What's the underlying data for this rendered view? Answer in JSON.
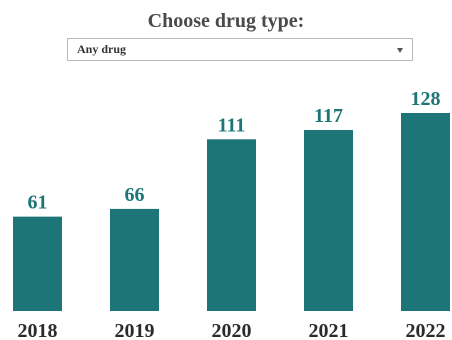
{
  "header": {
    "title": "Choose drug type:"
  },
  "filter": {
    "selected": "Any drug"
  },
  "colors": {
    "bar": "#1e7577",
    "value_label": "#1e7577",
    "tick_label": "#2b2b2b"
  },
  "chart_data": {
    "type": "bar",
    "categories": [
      "2018",
      "2019",
      "2020",
      "2021",
      "2022"
    ],
    "values": [
      61,
      66,
      111,
      117,
      128
    ],
    "title": "",
    "xlabel": "",
    "ylabel": "",
    "ylim": [
      0,
      128
    ],
    "grid": false,
    "legend": "none"
  }
}
